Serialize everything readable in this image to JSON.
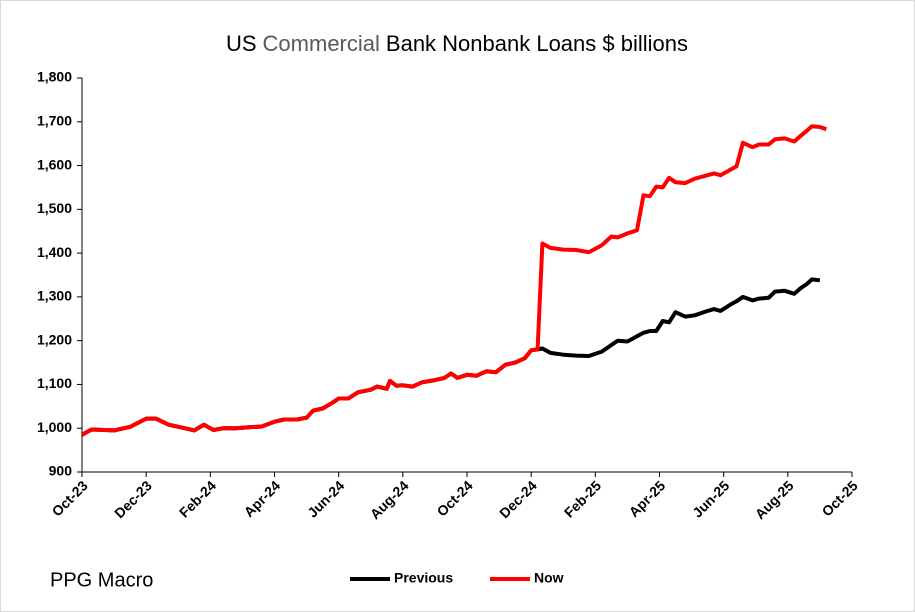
{
  "chart_data": {
    "type": "line",
    "title_parts": [
      {
        "text": "US",
        "color": "#000000"
      },
      {
        "text": "Commercial",
        "color": "#595959"
      },
      {
        "text": "Bank Nonbank Loans $ billions",
        "color": "#000000"
      }
    ],
    "source": "PPG Macro",
    "x": [
      0,
      0.3,
      1,
      1.5,
      2,
      2.3,
      2.7,
      3.2,
      3.5,
      3.8,
      4.1,
      4.4,
      4.8,
      5.2,
      5.6,
      6.0,
      6.3,
      6.7,
      7.0,
      7.2,
      7.5,
      7.8,
      8.0,
      8.3,
      8.6,
      9.0,
      9.2,
      9.5,
      9.6,
      9.8,
      10.0,
      10.3,
      10.6,
      11.0,
      11.3,
      11.5,
      11.7,
      12.0,
      12.3,
      12.6,
      12.9,
      13.2,
      13.5,
      13.8,
      14.0,
      14.2,
      14.35,
      14.6,
      15.0,
      15.4,
      15.8,
      16.2,
      16.5,
      16.7,
      17.0,
      17.3,
      17.5,
      17.7,
      17.9,
      18.1,
      18.3,
      18.5,
      18.8,
      19.1,
      19.5,
      19.7,
      19.9,
      20.2,
      20.4,
      20.6,
      20.9,
      21.1,
      21.4,
      21.6,
      21.9,
      22.2,
      22.4,
      22.6,
      22.75,
      23.0,
      23.2
    ],
    "series": [
      {
        "name": "Previous",
        "color": "#000000",
        "values": [
          985,
          997,
          995,
          1003,
          1022,
          1022,
          1008,
          1000,
          995,
          1008,
          996,
          1000,
          1000,
          1002,
          1004,
          1015,
          1020,
          1020,
          1024,
          1040,
          1045,
          1058,
          1068,
          1068,
          1082,
          1088,
          1095,
          1090,
          1108,
          1097,
          1098,
          1095,
          1105,
          1110,
          1115,
          1125,
          1115,
          1122,
          1120,
          1130,
          1128,
          1145,
          1150,
          1160,
          1178,
          1180,
          1182,
          1172,
          1168,
          1166,
          1165,
          1175,
          1190,
          1200,
          1198,
          1210,
          1218,
          1222,
          1222,
          1245,
          1242,
          1265,
          1255,
          1258,
          1268,
          1272,
          1268,
          1282,
          1290,
          1300,
          1292,
          1296,
          1298,
          1312,
          1314,
          1307,
          1320,
          1330,
          1340,
          1338,
          null
        ]
      },
      {
        "name": "Now",
        "color": "#ff0000",
        "values": [
          985,
          997,
          995,
          1003,
          1022,
          1022,
          1008,
          1000,
          995,
          1008,
          996,
          1000,
          1000,
          1002,
          1004,
          1015,
          1020,
          1020,
          1024,
          1040,
          1045,
          1058,
          1068,
          1068,
          1082,
          1088,
          1095,
          1090,
          1108,
          1097,
          1098,
          1095,
          1105,
          1110,
          1115,
          1125,
          1115,
          1122,
          1120,
          1130,
          1128,
          1145,
          1150,
          1160,
          1178,
          1180,
          1422,
          1412,
          1408,
          1407,
          1402,
          1418,
          1438,
          1436,
          1445,
          1452,
          1532,
          1530,
          1552,
          1550,
          1572,
          1562,
          1560,
          1570,
          1578,
          1582,
          1578,
          1590,
          1598,
          1652,
          1642,
          1648,
          1648,
          1660,
          1662,
          1655,
          1668,
          1680,
          1690,
          1688,
          1683
        ]
      }
    ],
    "xlim": [
      0,
      24
    ],
    "xticks": [
      {
        "value": 0,
        "label": "Oct-23"
      },
      {
        "value": 2,
        "label": "Dec-23"
      },
      {
        "value": 4,
        "label": "Feb-24"
      },
      {
        "value": 6,
        "label": "Apr-24"
      },
      {
        "value": 8,
        "label": "Jun-24"
      },
      {
        "value": 10,
        "label": "Aug-24"
      },
      {
        "value": 12,
        "label": "Oct-24"
      },
      {
        "value": 14,
        "label": "Dec-24"
      },
      {
        "value": 16,
        "label": "Feb-25"
      },
      {
        "value": 18,
        "label": "Apr-25"
      },
      {
        "value": 20,
        "label": "Jun-25"
      },
      {
        "value": 22,
        "label": "Aug-25"
      },
      {
        "value": 24,
        "label": "Oct-25"
      }
    ],
    "ylim": [
      900,
      1800
    ],
    "yticks": [
      900,
      {
        "value": 1000,
        "label": "1,000"
      },
      {
        "value": 1100,
        "label": "1,100"
      },
      {
        "value": 1200,
        "label": "1,200"
      },
      {
        "value": 1300,
        "label": "1,300"
      },
      {
        "value": 1400,
        "label": "1,400"
      },
      {
        "value": 1500,
        "label": "1,500"
      },
      {
        "value": 1600,
        "label": "1,600"
      },
      {
        "value": 1700,
        "label": "1,700"
      },
      {
        "value": 1800,
        "label": "1,800"
      }
    ],
    "grid": false,
    "legend": "bottom"
  }
}
